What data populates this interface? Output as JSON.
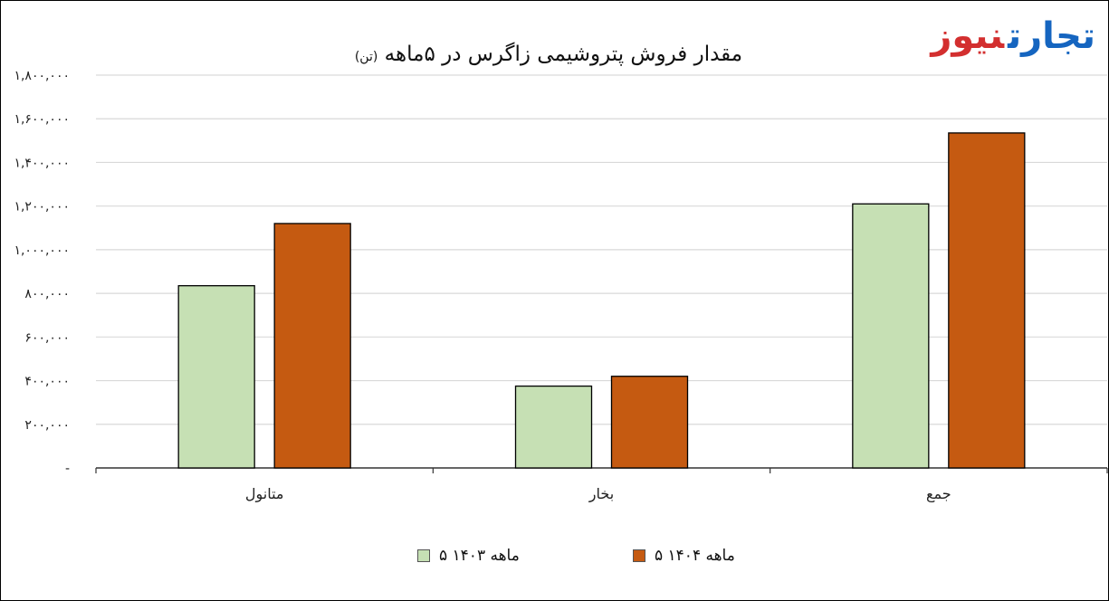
{
  "logo": {
    "word1": "تجارت",
    "word2": "نیوز",
    "color1": "#1565c0",
    "color2": "#d32f2f"
  },
  "chart_data": {
    "type": "bar",
    "title": "مقدار فروش پتروشیمی زاگرس در ۵ماهه",
    "title_unit": "(تن)",
    "categories": [
      "متانول",
      "بخار",
      "جمع"
    ],
    "series": [
      {
        "name": "۵ ماهه ۱۴۰۳",
        "color": "#c6e0b4",
        "values": [
          835000,
          375000,
          1210000
        ]
      },
      {
        "name": "۵ ماهه ۱۴۰۴",
        "color": "#c55a11",
        "values": [
          1120000,
          420000,
          1535000
        ]
      }
    ],
    "ylim": [
      0,
      1800000
    ],
    "y_ticks": [
      {
        "value": 0,
        "label": "-"
      },
      {
        "value": 200000,
        "label": "۲۰۰,۰۰۰"
      },
      {
        "value": 400000,
        "label": "۴۰۰,۰۰۰"
      },
      {
        "value": 600000,
        "label": "۶۰۰,۰۰۰"
      },
      {
        "value": 800000,
        "label": "۸۰۰,۰۰۰"
      },
      {
        "value": 1000000,
        "label": "۱,۰۰۰,۰۰۰"
      },
      {
        "value": 1200000,
        "label": "۱,۲۰۰,۰۰۰"
      },
      {
        "value": 1400000,
        "label": "۱,۴۰۰,۰۰۰"
      },
      {
        "value": 1600000,
        "label": "۱,۶۰۰,۰۰۰"
      },
      {
        "value": 1800000,
        "label": "۱,۸۰۰,۰۰۰"
      }
    ],
    "grid": true,
    "legend_position": "bottom"
  }
}
